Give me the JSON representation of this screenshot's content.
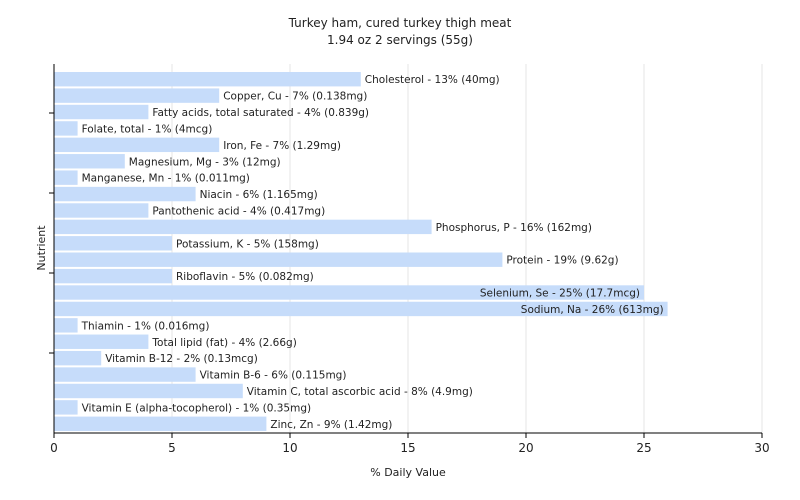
{
  "chart_data": {
    "type": "bar",
    "orientation": "horizontal",
    "title": "Turkey ham, cured turkey thigh meat",
    "subtitle": "1.94 oz 2 servings (55g)",
    "xlabel": "% Daily Value",
    "ylabel": "Nutrient",
    "xlim": [
      0,
      30
    ],
    "xticks": [
      "0",
      "5",
      "10",
      "15",
      "20",
      "25",
      "30"
    ],
    "grid": true,
    "bar_color": "#c6dcfa",
    "categories": [
      "Cholesterol",
      "Copper, Cu",
      "Fatty acids, total saturated",
      "Folate, total",
      "Iron, Fe",
      "Magnesium, Mg",
      "Manganese, Mn",
      "Niacin",
      "Pantothenic acid",
      "Phosphorus, P",
      "Potassium, K",
      "Protein",
      "Riboflavin",
      "Selenium, Se",
      "Sodium, Na",
      "Thiamin",
      "Total lipid (fat)",
      "Vitamin B-12",
      "Vitamin B-6",
      "Vitamin C, total ascorbic acid",
      "Vitamin E (alpha-tocopherol)",
      "Zinc, Zn"
    ],
    "values": [
      13,
      7,
      4,
      1,
      7,
      3,
      1,
      6,
      4,
      16,
      5,
      19,
      5,
      25,
      26,
      1,
      4,
      2,
      6,
      8,
      1,
      9
    ],
    "labels": [
      "Cholesterol - 13% (40mg)",
      "Copper, Cu - 7% (0.138mg)",
      "Fatty acids, total saturated - 4% (0.839g)",
      "Folate, total - 1% (4mcg)",
      "Iron, Fe - 7% (1.29mg)",
      "Magnesium, Mg - 3% (12mg)",
      "Manganese, Mn - 1% (0.011mg)",
      "Niacin - 6% (1.165mg)",
      "Pantothenic acid - 4% (0.417mg)",
      "Phosphorus, P - 16% (162mg)",
      "Potassium, K - 5% (158mg)",
      "Protein - 19% (9.62g)",
      "Riboflavin - 5% (0.082mg)",
      "Selenium, Se - 25% (17.7mcg)",
      "Sodium, Na - 26% (613mg)",
      "Thiamin - 1% (0.016mg)",
      "Total lipid (fat) - 4% (2.66g)",
      "Vitamin B-12 - 2% (0.13mcg)",
      "Vitamin B-6 - 6% (0.115mg)",
      "Vitamin C, total ascorbic acid - 8% (4.9mg)",
      "Vitamin E (alpha-tocopherol) - 1% (0.35mg)",
      "Zinc, Zn - 9% (1.42mg)"
    ]
  }
}
